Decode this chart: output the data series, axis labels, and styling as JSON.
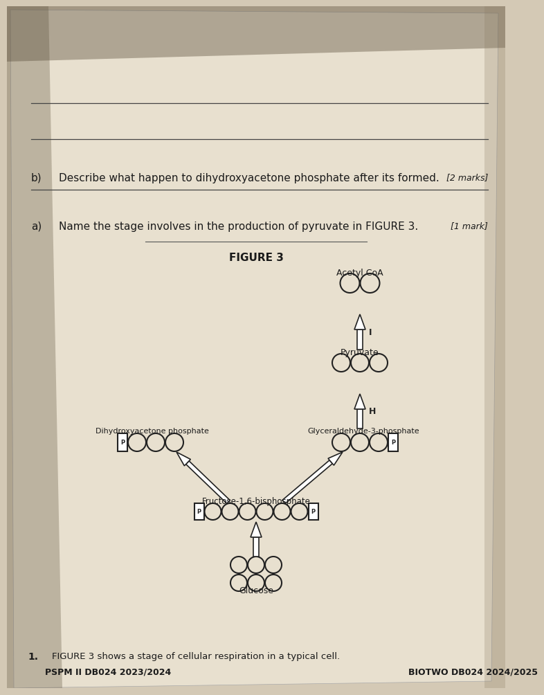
{
  "bg_color": "#d4c9b5",
  "paper_color": "#e8e0cf",
  "text_color": "#1a1a1a",
  "header_left": "PSPM II DB024 2023/2024",
  "header_right": "BIOTWO DB024 2024/2025",
  "question_number": "1.",
  "question_intro": "FIGURE 3 shows a stage of cellular respiration in a typical cell.",
  "figure_label": "FIGURE 3",
  "glucose_label": "Glucose",
  "fructose_label": "Fructose-1,6-bisphosphate",
  "dhap_label": "Dihydroxyacetone phosphate",
  "g3p_label": "Glyceraldehyde-3-phosphate",
  "pyruvate_label": "Pyruvate",
  "acetyl_label": "Acetyl CoA",
  "arrow_H": "H",
  "arrow_I": "I",
  "qa": [
    {
      "letter": "a)",
      "text": "Name the stage involves in the production of pyruvate in FIGURE 3.",
      "mark": "[1 mark]",
      "lines": 1
    },
    {
      "letter": "b)",
      "text": "Describe what happen to dihydroxyacetone phosphate after its formed.",
      "mark": "[2 marks]",
      "lines": 2
    }
  ]
}
